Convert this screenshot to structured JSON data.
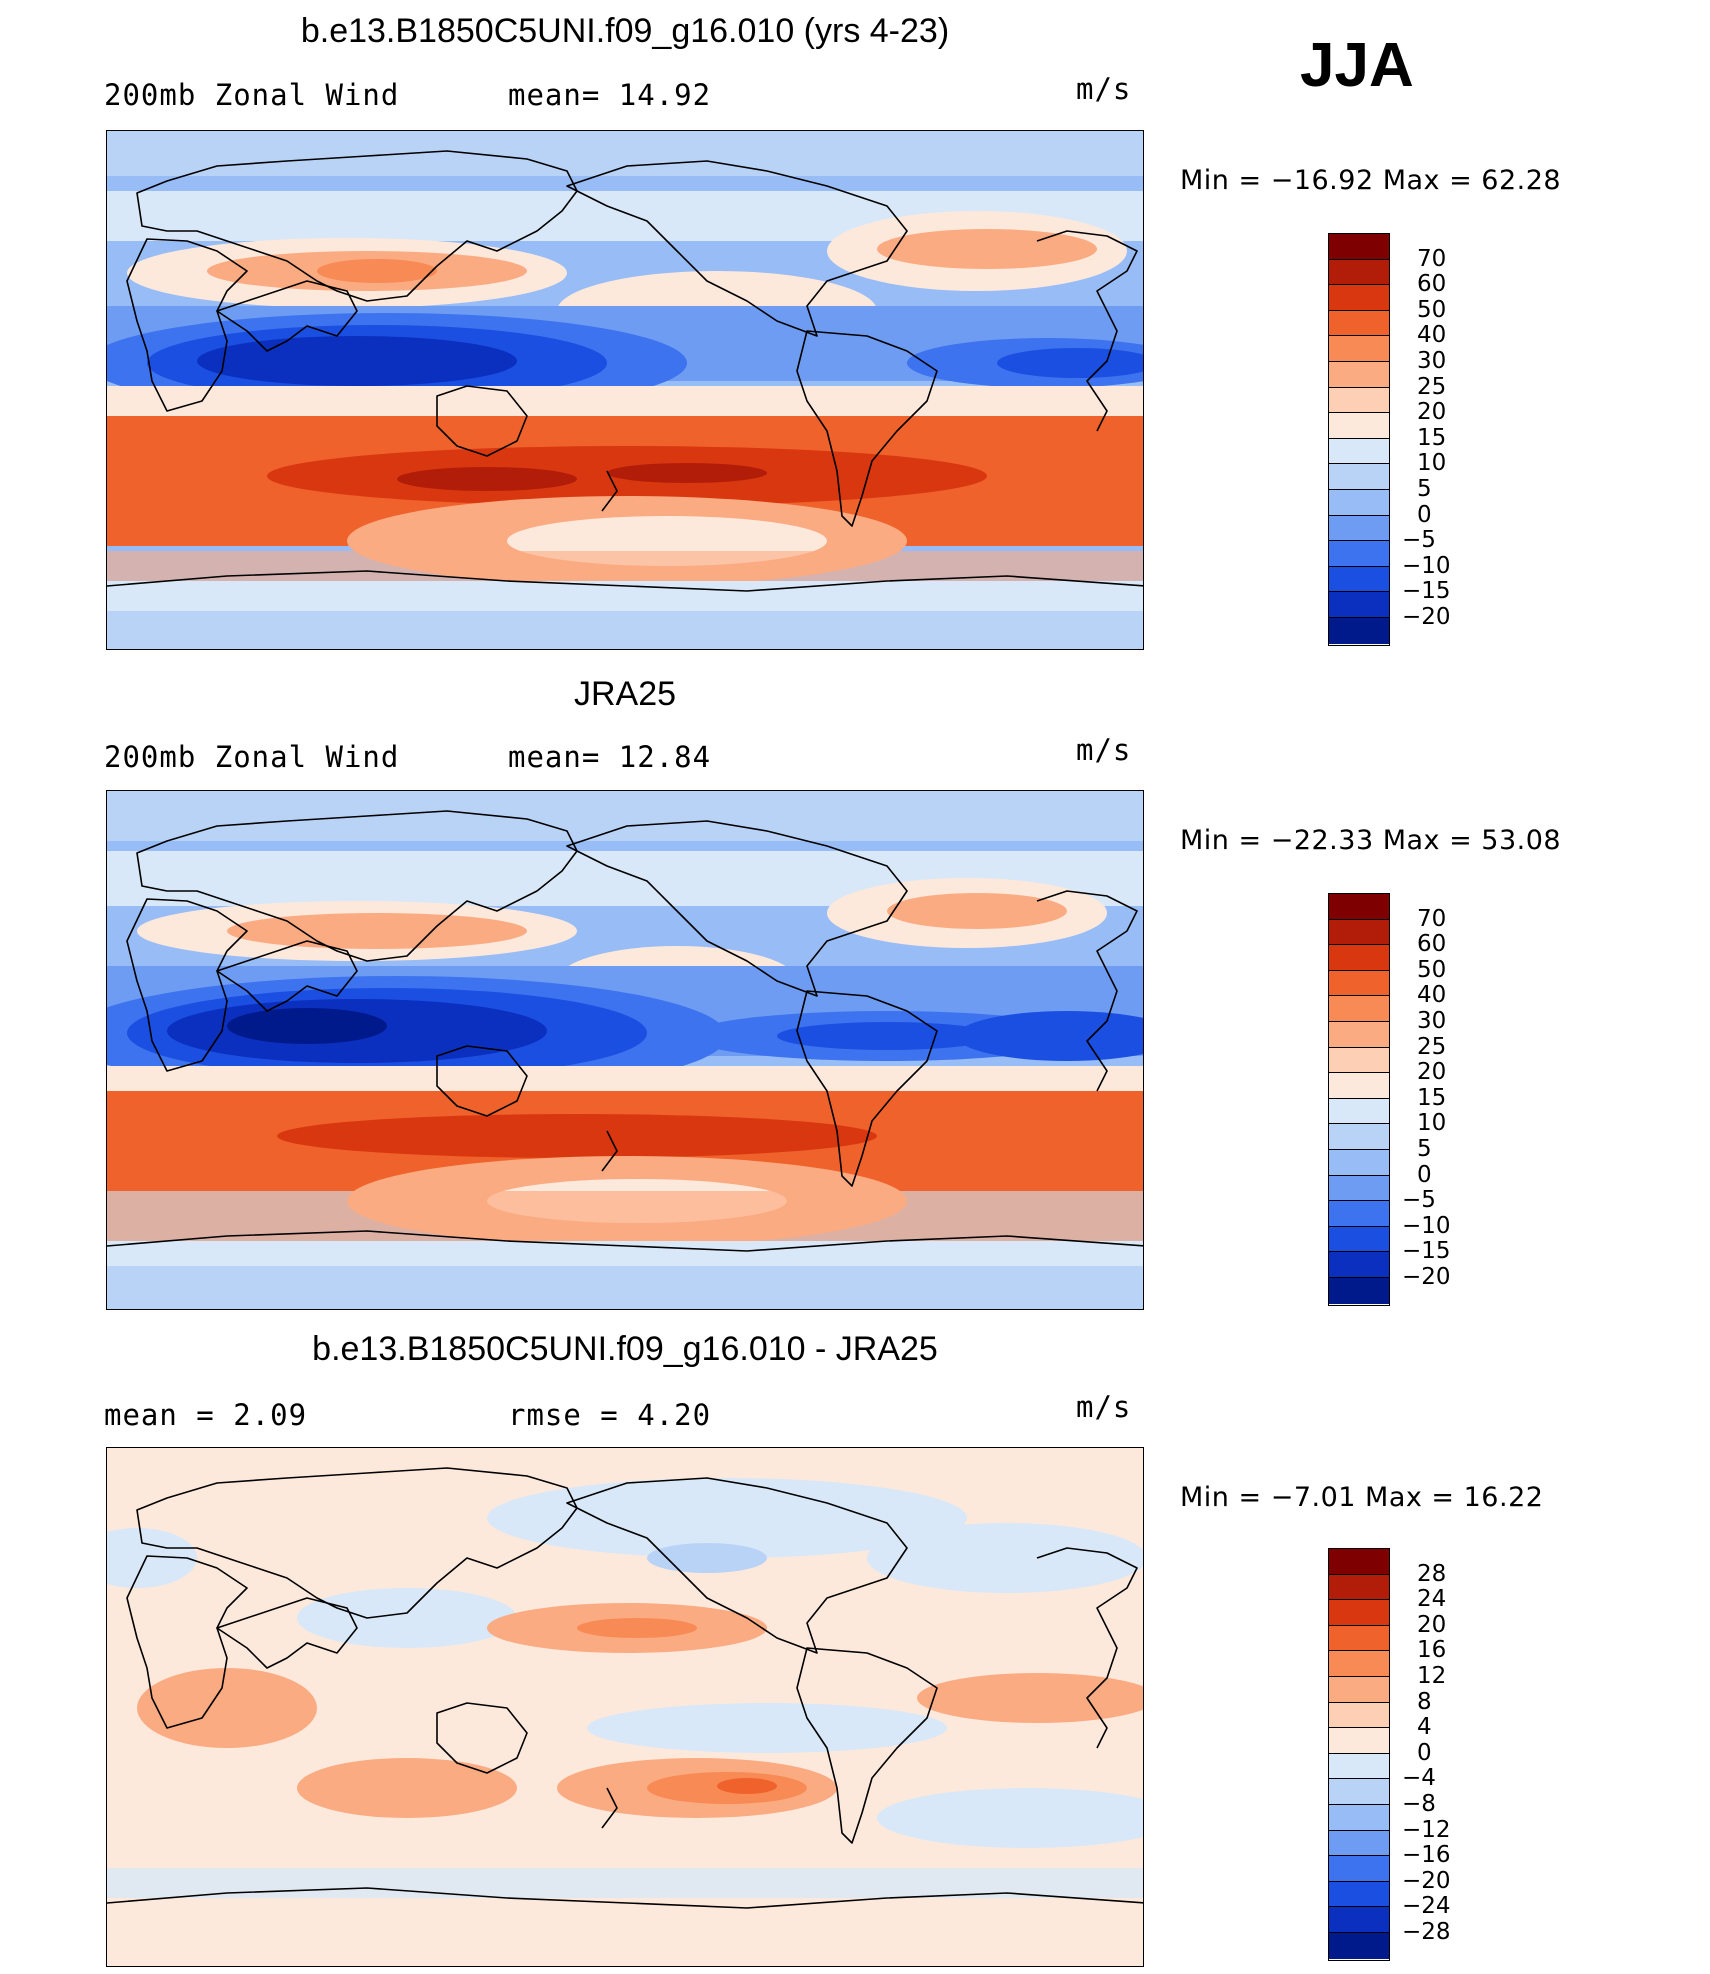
{
  "season": "JJA",
  "units": "m/s",
  "panels": [
    {
      "title": "b.e13.B1850C5UNI.f09_g16.010 (yrs 4-23)",
      "left_label": "200mb Zonal Wind",
      "mid_label": "mean=   14.92",
      "units": "m/s",
      "minmax": "Min  =  −16.92  Max  =    62.28",
      "colorbar": {
        "labels": [
          "70",
          "60",
          "50",
          "40",
          "30",
          "25",
          "20",
          "15",
          "10",
          "5",
          "0",
          "−5",
          "−10",
          "−15",
          "−20"
        ],
        "colors": [
          "#7f0000",
          "#b21d0a",
          "#d93710",
          "#f0622c",
          "#f78a55",
          "#fbab82",
          "#fdcfb4",
          "#fde9dc",
          "#d8e8f8",
          "#b9d3f7",
          "#98bcf5",
          "#6e9cf2",
          "#3d73ee",
          "#1a4fe2",
          "#0b30bf",
          "#001a8c"
        ]
      }
    },
    {
      "title": "JRA25",
      "left_label": "200mb Zonal Wind",
      "mid_label": "mean=   12.84",
      "units": "m/s",
      "minmax": "Min  =  −22.33  Max  =    53.08",
      "colorbar": {
        "labels": [
          "70",
          "60",
          "50",
          "40",
          "30",
          "25",
          "20",
          "15",
          "10",
          "5",
          "0",
          "−5",
          "−10",
          "−15",
          "−20"
        ],
        "colors": [
          "#7f0000",
          "#b21d0a",
          "#d93710",
          "#f0622c",
          "#f78a55",
          "#fbab82",
          "#fdcfb4",
          "#fde9dc",
          "#d8e8f8",
          "#b9d3f7",
          "#98bcf5",
          "#6e9cf2",
          "#3d73ee",
          "#1a4fe2",
          "#0b30bf",
          "#001a8c"
        ]
      }
    },
    {
      "title": "b.e13.B1850C5UNI.f09_g16.010 - JRA25",
      "left_label": "mean  =     2.09",
      "mid_label": "rmse  =     4.20",
      "units": "m/s",
      "minmax": "Min  =    −7.01  Max  =    16.22",
      "colorbar": {
        "labels": [
          "28",
          "24",
          "20",
          "16",
          "12",
          "8",
          "4",
          "0",
          "−4",
          "−8",
          "−12",
          "−16",
          "−20",
          "−24",
          "−28"
        ],
        "colors": [
          "#7f0000",
          "#b21d0a",
          "#d93710",
          "#f0622c",
          "#f78a55",
          "#fbab82",
          "#fdcfb4",
          "#fde9dc",
          "#d8e8f8",
          "#b9d3f7",
          "#98bcf5",
          "#6e9cf2",
          "#3d73ee",
          "#1a4fe2",
          "#0b30bf",
          "#001a8c"
        ]
      }
    }
  ]
}
